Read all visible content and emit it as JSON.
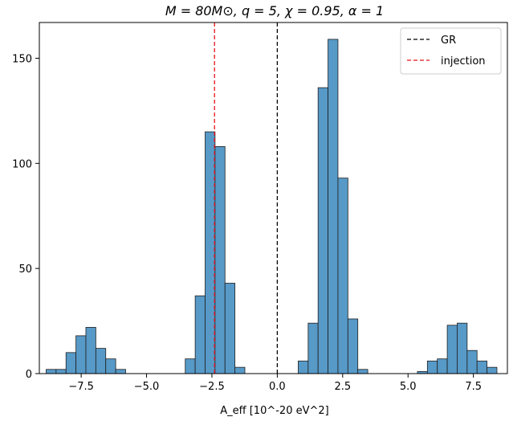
{
  "chart_data": {
    "type": "bar",
    "title": "M = 80M⊙, q = 5, χ = 0.95, α = 1",
    "xlabel": "A_eff [10^-20 eV^2]",
    "ylabel": "",
    "xlim": [
      -9.1,
      8.8
    ],
    "ylim": [
      0,
      167
    ],
    "xticks": [
      -7.5,
      -5.0,
      -2.5,
      0.0,
      2.5,
      5.0,
      7.5
    ],
    "xtick_labels": [
      "−7.5",
      "−5.0",
      "−2.5",
      "0.0",
      "2.5",
      "5.0",
      "7.5"
    ],
    "yticks": [
      0,
      50,
      100,
      150
    ],
    "ytick_labels": [
      "0",
      "50",
      "100",
      "150"
    ],
    "bin_width": 0.38,
    "bar_color": "#5799c7",
    "bar_edge_color": "#1f1f1f",
    "bins": [
      {
        "left": -8.84,
        "count": 2
      },
      {
        "left": -8.46,
        "count": 2
      },
      {
        "left": -8.08,
        "count": 10
      },
      {
        "left": -7.7,
        "count": 18
      },
      {
        "left": -7.32,
        "count": 22
      },
      {
        "left": -6.94,
        "count": 12
      },
      {
        "left": -6.56,
        "count": 7
      },
      {
        "left": -6.18,
        "count": 2
      },
      {
        "left": -3.52,
        "count": 7
      },
      {
        "left": -3.14,
        "count": 37
      },
      {
        "left": -2.76,
        "count": 115
      },
      {
        "left": -2.38,
        "count": 108
      },
      {
        "left": -2.0,
        "count": 43
      },
      {
        "left": -1.62,
        "count": 3
      },
      {
        "left": 0.8,
        "count": 6
      },
      {
        "left": 1.18,
        "count": 24
      },
      {
        "left": 1.56,
        "count": 136
      },
      {
        "left": 1.94,
        "count": 159
      },
      {
        "left": 2.32,
        "count": 93
      },
      {
        "left": 2.7,
        "count": 26
      },
      {
        "left": 3.08,
        "count": 2
      },
      {
        "left": 5.36,
        "count": 1
      },
      {
        "left": 5.74,
        "count": 6
      },
      {
        "left": 6.12,
        "count": 7
      },
      {
        "left": 6.5,
        "count": 23
      },
      {
        "left": 6.88,
        "count": 24
      },
      {
        "left": 7.26,
        "count": 11
      },
      {
        "left": 7.64,
        "count": 6
      },
      {
        "left": 8.02,
        "count": 3
      }
    ],
    "reference_lines": [
      {
        "name": "GR",
        "x": 0.0,
        "color": "#000000"
      },
      {
        "name": "injection",
        "x": -2.4,
        "color": "#e8111b"
      }
    ],
    "legend_position": "top-right",
    "grid": false
  }
}
